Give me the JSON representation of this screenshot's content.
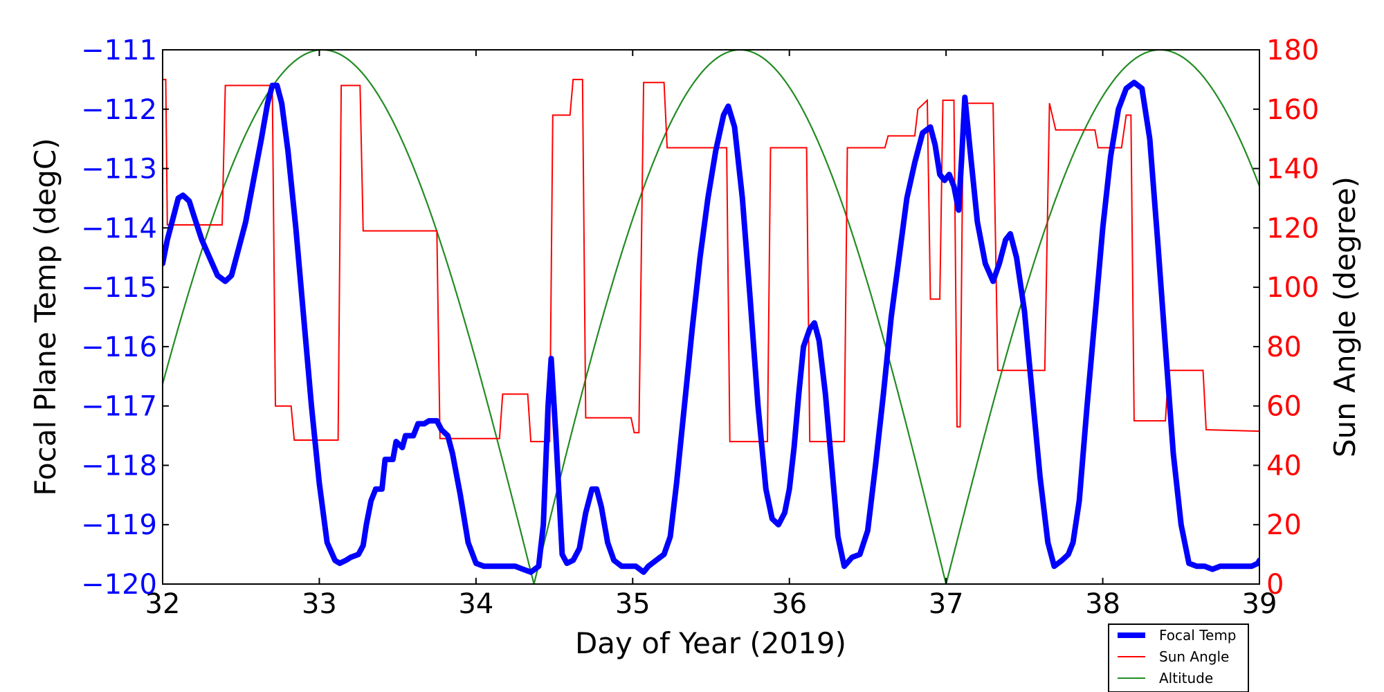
{
  "chart_data": {
    "type": "line",
    "title": "",
    "xlabel": "Day of Year (2019)",
    "ylabel_left": "Focal Plane Temp (degC)",
    "ylabel_right": "Sun Angle (degree)",
    "xlim": [
      32,
      39
    ],
    "ylim_left": [
      -120,
      -111
    ],
    "ylim_right": [
      0,
      180
    ],
    "x_ticks": [
      "32",
      "33",
      "34",
      "35",
      "36",
      "37",
      "38",
      "39"
    ],
    "y_ticks_left": [
      "−120",
      "−119",
      "−118",
      "−117",
      "−116",
      "−115",
      "−114",
      "−113",
      "−112",
      "−111"
    ],
    "y_ticks_right": [
      "0",
      "20",
      "40",
      "60",
      "80",
      "100",
      "120",
      "140",
      "160",
      "180"
    ],
    "legend_position": "bottom-right",
    "colors": {
      "focal_temp": "#0000ff",
      "sun_angle": "#ff0000",
      "altitude": "#228b22",
      "left_axis": "#0000ff",
      "right_axis": "#ff0000"
    },
    "series": [
      {
        "name": "Focal Temp",
        "axis": "left",
        "points": [
          [
            32.0,
            -114.6
          ],
          [
            32.03,
            -114.2
          ],
          [
            32.07,
            -113.8
          ],
          [
            32.1,
            -113.5
          ],
          [
            32.13,
            -113.45
          ],
          [
            32.17,
            -113.55
          ],
          [
            32.2,
            -113.8
          ],
          [
            32.25,
            -114.2
          ],
          [
            32.3,
            -114.5
          ],
          [
            32.35,
            -114.8
          ],
          [
            32.4,
            -114.9
          ],
          [
            32.44,
            -114.8
          ],
          [
            32.48,
            -114.4
          ],
          [
            32.53,
            -113.9
          ],
          [
            32.58,
            -113.2
          ],
          [
            32.63,
            -112.5
          ],
          [
            32.67,
            -111.9
          ],
          [
            32.7,
            -111.6
          ],
          [
            32.73,
            -111.6
          ],
          [
            32.76,
            -111.9
          ],
          [
            32.8,
            -112.7
          ],
          [
            32.85,
            -114.0
          ],
          [
            32.9,
            -115.5
          ],
          [
            32.95,
            -117.0
          ],
          [
            33.0,
            -118.3
          ],
          [
            33.05,
            -119.3
          ],
          [
            33.1,
            -119.6
          ],
          [
            33.13,
            -119.65
          ],
          [
            33.17,
            -119.6
          ],
          [
            33.2,
            -119.55
          ],
          [
            33.25,
            -119.5
          ],
          [
            33.28,
            -119.35
          ],
          [
            33.3,
            -119.0
          ],
          [
            33.33,
            -118.6
          ],
          [
            33.36,
            -118.4
          ],
          [
            33.4,
            -118.4
          ],
          [
            33.42,
            -117.9
          ],
          [
            33.47,
            -117.9
          ],
          [
            33.49,
            -117.6
          ],
          [
            33.53,
            -117.7
          ],
          [
            33.55,
            -117.5
          ],
          [
            33.6,
            -117.5
          ],
          [
            33.63,
            -117.3
          ],
          [
            33.67,
            -117.3
          ],
          [
            33.7,
            -117.25
          ],
          [
            33.75,
            -117.25
          ],
          [
            33.78,
            -117.4
          ],
          [
            33.82,
            -117.5
          ],
          [
            33.85,
            -117.8
          ],
          [
            33.9,
            -118.5
          ],
          [
            33.95,
            -119.3
          ],
          [
            34.0,
            -119.65
          ],
          [
            34.05,
            -119.7
          ],
          [
            34.1,
            -119.7
          ],
          [
            34.15,
            -119.7
          ],
          [
            34.2,
            -119.7
          ],
          [
            34.25,
            -119.7
          ],
          [
            34.3,
            -119.75
          ],
          [
            34.35,
            -119.8
          ],
          [
            34.4,
            -119.7
          ],
          [
            34.43,
            -119.0
          ],
          [
            34.46,
            -117.0
          ],
          [
            34.48,
            -116.2
          ],
          [
            34.51,
            -117.5
          ],
          [
            34.55,
            -119.5
          ],
          [
            34.58,
            -119.65
          ],
          [
            34.62,
            -119.6
          ],
          [
            34.66,
            -119.4
          ],
          [
            34.7,
            -118.8
          ],
          [
            34.74,
            -118.4
          ],
          [
            34.77,
            -118.4
          ],
          [
            34.8,
            -118.7
          ],
          [
            34.84,
            -119.3
          ],
          [
            34.88,
            -119.6
          ],
          [
            34.93,
            -119.7
          ],
          [
            34.98,
            -119.7
          ],
          [
            35.02,
            -119.7
          ],
          [
            35.07,
            -119.8
          ],
          [
            35.1,
            -119.7
          ],
          [
            35.15,
            -119.6
          ],
          [
            35.2,
            -119.5
          ],
          [
            35.24,
            -119.2
          ],
          [
            35.28,
            -118.3
          ],
          [
            35.33,
            -117.0
          ],
          [
            35.38,
            -115.7
          ],
          [
            35.43,
            -114.5
          ],
          [
            35.48,
            -113.5
          ],
          [
            35.53,
            -112.7
          ],
          [
            35.58,
            -112.1
          ],
          [
            35.61,
            -111.95
          ],
          [
            35.65,
            -112.3
          ],
          [
            35.7,
            -113.5
          ],
          [
            35.75,
            -115.2
          ],
          [
            35.8,
            -117.0
          ],
          [
            35.85,
            -118.4
          ],
          [
            35.89,
            -118.9
          ],
          [
            35.93,
            -119.0
          ],
          [
            35.97,
            -118.8
          ],
          [
            36.0,
            -118.4
          ],
          [
            36.03,
            -117.7
          ],
          [
            36.06,
            -116.8
          ],
          [
            36.09,
            -116.0
          ],
          [
            36.13,
            -115.7
          ],
          [
            36.16,
            -115.6
          ],
          [
            36.19,
            -115.9
          ],
          [
            36.23,
            -116.8
          ],
          [
            36.27,
            -118.0
          ],
          [
            36.31,
            -119.2
          ],
          [
            36.35,
            -119.7
          ],
          [
            36.4,
            -119.55
          ],
          [
            36.45,
            -119.5
          ],
          [
            36.5,
            -119.1
          ],
          [
            36.55,
            -118.0
          ],
          [
            36.6,
            -116.8
          ],
          [
            36.65,
            -115.5
          ],
          [
            36.7,
            -114.5
          ],
          [
            36.75,
            -113.5
          ],
          [
            36.8,
            -112.9
          ],
          [
            36.85,
            -112.4
          ],
          [
            36.9,
            -112.3
          ],
          [
            36.93,
            -112.6
          ],
          [
            36.96,
            -113.1
          ],
          [
            36.99,
            -113.2
          ],
          [
            37.02,
            -113.1
          ],
          [
            37.05,
            -113.3
          ],
          [
            37.08,
            -113.7
          ],
          [
            37.1,
            -112.8
          ],
          [
            37.12,
            -111.8
          ],
          [
            37.15,
            -112.6
          ],
          [
            37.2,
            -113.9
          ],
          [
            37.25,
            -114.6
          ],
          [
            37.3,
            -114.9
          ],
          [
            37.34,
            -114.6
          ],
          [
            37.38,
            -114.2
          ],
          [
            37.41,
            -114.1
          ],
          [
            37.45,
            -114.5
          ],
          [
            37.5,
            -115.4
          ],
          [
            37.55,
            -116.8
          ],
          [
            37.6,
            -118.2
          ],
          [
            37.65,
            -119.3
          ],
          [
            37.69,
            -119.7
          ],
          [
            37.74,
            -119.6
          ],
          [
            37.78,
            -119.5
          ],
          [
            37.81,
            -119.3
          ],
          [
            37.85,
            -118.6
          ],
          [
            37.9,
            -117.0
          ],
          [
            37.95,
            -115.5
          ],
          [
            38.0,
            -114.0
          ],
          [
            38.05,
            -112.8
          ],
          [
            38.1,
            -112.0
          ],
          [
            38.15,
            -111.65
          ],
          [
            38.2,
            -111.55
          ],
          [
            38.25,
            -111.65
          ],
          [
            38.3,
            -112.5
          ],
          [
            38.35,
            -114.2
          ],
          [
            38.4,
            -116.0
          ],
          [
            38.45,
            -117.8
          ],
          [
            38.5,
            -119.0
          ],
          [
            38.55,
            -119.65
          ],
          [
            38.6,
            -119.7
          ],
          [
            38.65,
            -119.7
          ],
          [
            38.7,
            -119.75
          ],
          [
            38.75,
            -119.7
          ],
          [
            38.8,
            -119.7
          ],
          [
            38.85,
            -119.7
          ],
          [
            38.9,
            -119.7
          ],
          [
            38.95,
            -119.7
          ],
          [
            38.99,
            -119.65
          ],
          [
            39.0,
            -119.6
          ]
        ]
      },
      {
        "name": "Sun Angle",
        "axis": "right",
        "points": [
          [
            32.0,
            170
          ],
          [
            32.02,
            170
          ],
          [
            32.03,
            121
          ],
          [
            32.38,
            121
          ],
          [
            32.4,
            168
          ],
          [
            32.7,
            168
          ],
          [
            32.72,
            60
          ],
          [
            32.82,
            60
          ],
          [
            32.84,
            48.5
          ],
          [
            33.12,
            48.5
          ],
          [
            33.14,
            168
          ],
          [
            33.26,
            168
          ],
          [
            33.28,
            119
          ],
          [
            33.75,
            119
          ],
          [
            33.77,
            49
          ],
          [
            34.15,
            49
          ],
          [
            34.17,
            64
          ],
          [
            34.33,
            64
          ],
          [
            34.35,
            48
          ],
          [
            34.47,
            48
          ],
          [
            34.49,
            158
          ],
          [
            34.6,
            158
          ],
          [
            34.62,
            170
          ],
          [
            34.68,
            170
          ],
          [
            34.7,
            56
          ],
          [
            34.99,
            56
          ],
          [
            35.01,
            51
          ],
          [
            35.04,
            51
          ],
          [
            35.07,
            169
          ],
          [
            35.2,
            169
          ],
          [
            35.22,
            147
          ],
          [
            35.6,
            147
          ],
          [
            35.62,
            48
          ],
          [
            35.86,
            48
          ],
          [
            35.88,
            147
          ],
          [
            36.11,
            147
          ],
          [
            36.13,
            48
          ],
          [
            36.35,
            48
          ],
          [
            36.37,
            147
          ],
          [
            36.61,
            147
          ],
          [
            36.63,
            151
          ],
          [
            36.8,
            151
          ],
          [
            36.82,
            160
          ],
          [
            36.88,
            163
          ],
          [
            36.9,
            96
          ],
          [
            36.96,
            96
          ],
          [
            36.98,
            163
          ],
          [
            37.05,
            163
          ],
          [
            37.07,
            53
          ],
          [
            37.09,
            53
          ],
          [
            37.11,
            162
          ],
          [
            37.3,
            162
          ],
          [
            37.33,
            72
          ],
          [
            37.63,
            72
          ],
          [
            37.66,
            162
          ],
          [
            37.7,
            153
          ],
          [
            37.95,
            153
          ],
          [
            37.97,
            147
          ],
          [
            38.12,
            147
          ],
          [
            38.15,
            158
          ],
          [
            38.18,
            158
          ],
          [
            38.2,
            55
          ],
          [
            38.4,
            55
          ],
          [
            38.42,
            72
          ],
          [
            38.64,
            72
          ],
          [
            38.66,
            52
          ],
          [
            39.0,
            51.5
          ]
        ]
      },
      {
        "name": "Altitude",
        "axis": "right",
        "function": "arch",
        "minima_x": [
          31.67,
          34.37,
          37.0,
          39.73
        ],
        "peak_value": 180,
        "min_value": 0
      }
    ]
  }
}
